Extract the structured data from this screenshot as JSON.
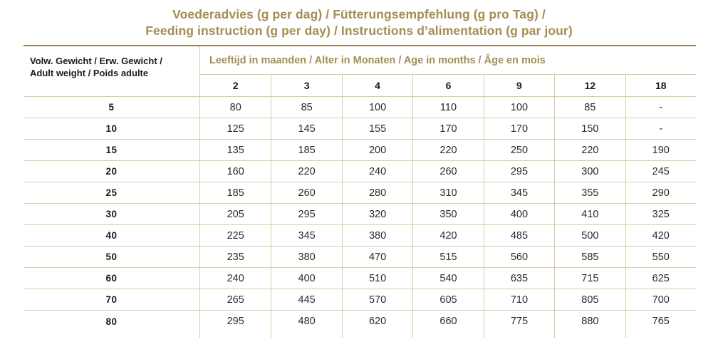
{
  "title": {
    "line1": "Voederadvies (g per dag) / Fütterungsempfehlung (g pro Tag) /",
    "line2": "Feeding instruction (g per day) / Instructions d’alimentation (g par jour)"
  },
  "chart_data": {
    "type": "table",
    "title": "Voederadvies (g per dag) / Fütterungsempfehlung (g pro Tag) / Feeding instruction (g per day) / Instructions d’alimentation (g par jour)",
    "row_header_lines": [
      "Volw. Gewicht / Erw. Gewicht /",
      "Adult weight / Poids adulte"
    ],
    "column_group_label": "Leeftijd in maanden / Alter in Monaten / Age in months / Âge en mois",
    "columns": [
      "2",
      "3",
      "4",
      "6",
      "9",
      "12",
      "18"
    ],
    "rows": [
      {
        "weight": "5",
        "values": [
          "80",
          "85",
          "100",
          "110",
          "100",
          "85",
          "-"
        ]
      },
      {
        "weight": "10",
        "values": [
          "125",
          "145",
          "155",
          "170",
          "170",
          "150",
          "-"
        ]
      },
      {
        "weight": "15",
        "values": [
          "135",
          "185",
          "200",
          "220",
          "250",
          "220",
          "190"
        ]
      },
      {
        "weight": "20",
        "values": [
          "160",
          "220",
          "240",
          "260",
          "295",
          "300",
          "245"
        ]
      },
      {
        "weight": "25",
        "values": [
          "185",
          "260",
          "280",
          "310",
          "345",
          "355",
          "290"
        ]
      },
      {
        "weight": "30",
        "values": [
          "205",
          "295",
          "320",
          "350",
          "400",
          "410",
          "325"
        ]
      },
      {
        "weight": "40",
        "values": [
          "225",
          "345",
          "380",
          "420",
          "485",
          "500",
          "420"
        ]
      },
      {
        "weight": "50",
        "values": [
          "235",
          "380",
          "470",
          "515",
          "560",
          "585",
          "550"
        ]
      },
      {
        "weight": "60",
        "values": [
          "240",
          "400",
          "510",
          "540",
          "635",
          "715",
          "625"
        ]
      },
      {
        "weight": "70",
        "values": [
          "265",
          "445",
          "570",
          "605",
          "710",
          "805",
          "700"
        ]
      },
      {
        "weight": "80",
        "values": [
          "295",
          "480",
          "620",
          "660",
          "775",
          "880",
          "765"
        ]
      }
    ]
  },
  "colors": {
    "gold_text": "#a58d52",
    "border_dark": "#93804f",
    "border_light": "#d8cca0",
    "text_dark": "#1c1c1c"
  }
}
